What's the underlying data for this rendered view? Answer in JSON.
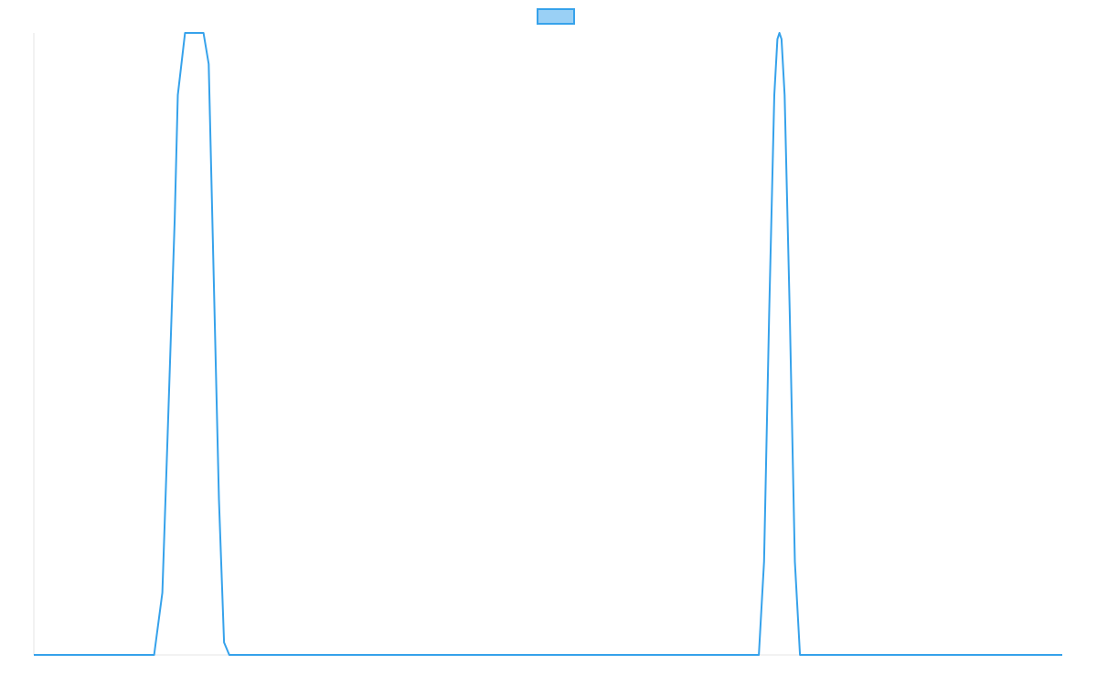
{
  "chart_data": {
    "type": "line",
    "legend": {
      "placement": "top-center",
      "entries": [
        {
          "name": "",
          "color": "#36a2eb",
          "fill": "#9ad0f5"
        }
      ]
    },
    "axes": {
      "x_range": [
        0,
        1
      ],
      "y_range": [
        0,
        1
      ],
      "grid": false,
      "tick_labels_visible": false
    },
    "series": [
      {
        "color": "#36a2eb",
        "x": [
          0,
          0.117,
          0.125,
          0.13,
          0.137,
          0.14,
          0.147,
          0.155,
          0.16,
          0.165,
          0.17,
          0.175,
          0.18,
          0.185,
          0.19,
          0.195,
          0.2,
          0.205,
          0.21,
          0.6,
          0.705,
          0.71,
          0.715,
          0.72,
          0.723,
          0.725,
          0.727,
          0.73,
          0.735,
          0.74,
          0.745,
          0.75,
          0.755,
          0.78,
          1
        ],
        "y": [
          0,
          0,
          0.1,
          0.35,
          0.7,
          0.9,
          1,
          1,
          1,
          1,
          0.95,
          0.6,
          0.25,
          0.02,
          0,
          0,
          0,
          0,
          0,
          0,
          0,
          0.15,
          0.55,
          0.9,
          0.99,
          1,
          0.99,
          0.9,
          0.55,
          0.15,
          0,
          0,
          0,
          0,
          0
        ]
      }
    ]
  }
}
